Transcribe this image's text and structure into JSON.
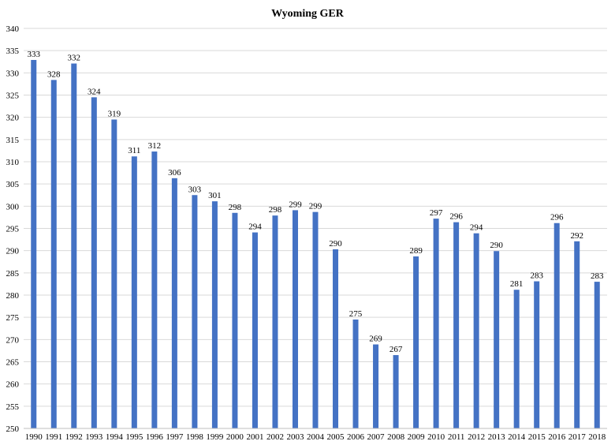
{
  "chart_data": {
    "type": "bar",
    "title": "Wyoming GER",
    "xlabel": "",
    "ylabel": "",
    "categories": [
      "1990",
      "1991",
      "1992",
      "1993",
      "1994",
      "1995",
      "1996",
      "1997",
      "1998",
      "1999",
      "2000",
      "2001",
      "2002",
      "2003",
      "2004",
      "2005",
      "2006",
      "2007",
      "2008",
      "2009",
      "2010",
      "2011",
      "2012",
      "2013",
      "2014",
      "2015",
      "2016",
      "2017",
      "2018"
    ],
    "values": [
      333,
      328,
      332,
      324,
      319,
      311,
      312,
      306,
      303,
      301,
      298,
      294,
      298,
      299,
      299,
      290,
      275,
      269,
      267,
      289,
      297,
      296,
      294,
      290,
      281,
      283,
      296,
      292,
      283
    ],
    "bar_heights": [
      332.9,
      328.4,
      332.1,
      324.5,
      319.5,
      311.2,
      312.3,
      306.3,
      302.5,
      301.1,
      298.5,
      294.1,
      297.9,
      299.1,
      298.7,
      290.3,
      274.5,
      268.9,
      266.5,
      288.7,
      297.2,
      296.4,
      293.9,
      289.9,
      281.2,
      283.1,
      296.2,
      292.1,
      283.0
    ],
    "yticks": [
      250,
      255,
      260,
      265,
      270,
      275,
      280,
      285,
      290,
      295,
      300,
      305,
      310,
      315,
      320,
      325,
      330,
      335,
      340
    ],
    "ylim": [
      250,
      340
    ],
    "bar_color": "#4472c4",
    "grid": true,
    "legend": "none"
  }
}
